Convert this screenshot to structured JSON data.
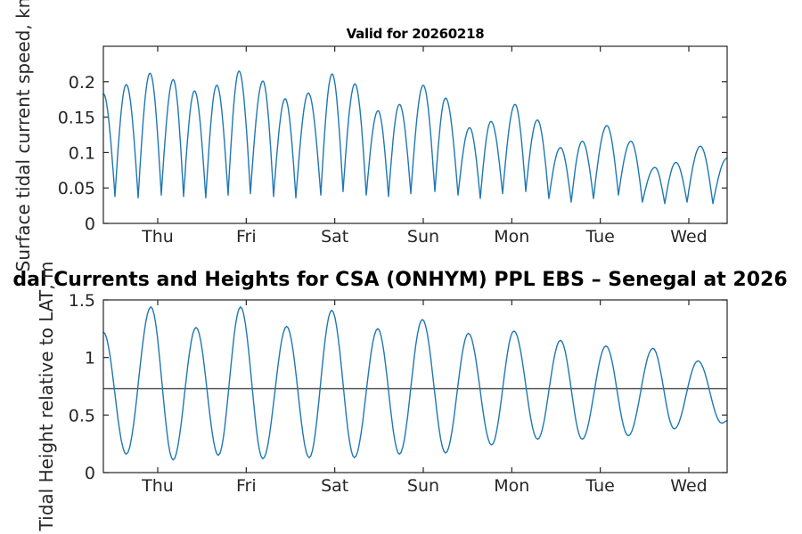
{
  "figure": {
    "title": "dal Currents and Heights for CSA (ONHYM) PPL EBS  – Senegal at 2026",
    "background_color": "#ffffff",
    "line_color": "#1f77b4",
    "axis_color": "#262626",
    "reference_line_color": "#595959",
    "text_color": "#262626"
  },
  "chart_data": [
    {
      "type": "line",
      "title": "Valid for 20260218",
      "ylabel": "Surface tidal current speed, kn",
      "xlabel": "",
      "legend": "none",
      "grid": false,
      "x_range_days": [
        0,
        7.047
      ],
      "x_tick_positions_days": [
        0.614,
        1.614,
        2.614,
        3.614,
        4.614,
        5.614,
        6.614
      ],
      "x_ticklabels": [
        "Thu",
        "Fri",
        "Sat",
        "Sun",
        "Mon",
        "Tue",
        "Wed"
      ],
      "ylim": [
        0,
        0.25
      ],
      "yticks": [
        0,
        0.05,
        0.1,
        0.15,
        0.2
      ],
      "ytick_labels": [
        "0",
        "0.05",
        "0.1",
        "0.15",
        "0.2"
      ],
      "interpolation": "cusp",
      "series": [
        {
          "name": "surface-tidal-current-speed",
          "extrema_day_value": [
            [
              0.0,
              0.183
            ],
            [
              0.131,
              0.038
            ],
            [
              0.259,
              0.196
            ],
            [
              0.393,
              0.036
            ],
            [
              0.527,
              0.212
            ],
            [
              0.654,
              0.04
            ],
            [
              0.789,
              0.203
            ],
            [
              0.906,
              0.038
            ],
            [
              1.03,
              0.187
            ],
            [
              1.157,
              0.036
            ],
            [
              1.281,
              0.195
            ],
            [
              1.409,
              0.04
            ],
            [
              1.533,
              0.215
            ],
            [
              1.661,
              0.042
            ],
            [
              1.802,
              0.201
            ],
            [
              1.923,
              0.038
            ],
            [
              2.054,
              0.176
            ],
            [
              2.175,
              0.036
            ],
            [
              2.316,
              0.184
            ],
            [
              2.456,
              0.04
            ],
            [
              2.584,
              0.211
            ],
            [
              2.708,
              0.045
            ],
            [
              2.842,
              0.197
            ],
            [
              2.97,
              0.04
            ],
            [
              3.103,
              0.159
            ],
            [
              3.221,
              0.038
            ],
            [
              3.345,
              0.168
            ],
            [
              3.473,
              0.042
            ],
            [
              3.614,
              0.195
            ],
            [
              3.745,
              0.045
            ],
            [
              3.866,
              0.177
            ],
            [
              4.007,
              0.04
            ],
            [
              4.137,
              0.135
            ],
            [
              4.258,
              0.035
            ],
            [
              4.379,
              0.144
            ],
            [
              4.51,
              0.042
            ],
            [
              4.651,
              0.168
            ],
            [
              4.772,
              0.045
            ],
            [
              4.903,
              0.146
            ],
            [
              5.033,
              0.035
            ],
            [
              5.164,
              0.107
            ],
            [
              5.285,
              0.03
            ],
            [
              5.411,
              0.116
            ],
            [
              5.537,
              0.035
            ],
            [
              5.688,
              0.138
            ],
            [
              5.819,
              0.04
            ],
            [
              5.96,
              0.116
            ],
            [
              6.09,
              0.03
            ],
            [
              6.231,
              0.079
            ],
            [
              6.342,
              0.028
            ],
            [
              6.468,
              0.086
            ],
            [
              6.594,
              0.03
            ],
            [
              6.745,
              0.109
            ],
            [
              6.886,
              0.028
            ],
            [
              7.047,
              0.092
            ]
          ]
        }
      ]
    },
    {
      "type": "line",
      "title": "",
      "ylabel": "Tidal Height relative to LAT, m",
      "xlabel": "",
      "legend": "none",
      "grid": false,
      "x_range_days": [
        0,
        7.047
      ],
      "x_tick_positions_days": [
        0.614,
        1.614,
        2.614,
        3.614,
        4.614,
        5.614,
        6.614
      ],
      "x_ticklabels": [
        "Thu",
        "Fri",
        "Sat",
        "Sun",
        "Mon",
        "Tue",
        "Wed"
      ],
      "ylim": [
        0,
        1.5
      ],
      "yticks": [
        0,
        0.5,
        1,
        1.5
      ],
      "ytick_labels": [
        "0",
        "0.5",
        "1",
        "1.5"
      ],
      "interpolation": "cosine",
      "reference_line_y": 0.73,
      "series": [
        {
          "name": "tidal-height",
          "extrema_day_value": [
            [
              0.0,
              1.22
            ],
            [
              0.259,
              0.16
            ],
            [
              0.537,
              1.44
            ],
            [
              0.788,
              0.11
            ],
            [
              1.047,
              1.26
            ],
            [
              1.299,
              0.15
            ],
            [
              1.55,
              1.44
            ],
            [
              1.802,
              0.12
            ],
            [
              2.071,
              1.27
            ],
            [
              2.326,
              0.13
            ],
            [
              2.58,
              1.41
            ],
            [
              2.836,
              0.13
            ],
            [
              3.1,
              1.25
            ],
            [
              3.345,
              0.16
            ],
            [
              3.604,
              1.33
            ],
            [
              3.866,
              0.17
            ],
            [
              4.124,
              1.21
            ],
            [
              4.386,
              0.24
            ],
            [
              4.638,
              1.23
            ],
            [
              4.906,
              0.29
            ],
            [
              5.164,
              1.15
            ],
            [
              5.409,
              0.29
            ],
            [
              5.678,
              1.1
            ],
            [
              5.93,
              0.32
            ],
            [
              6.208,
              1.08
            ],
            [
              6.45,
              0.38
            ],
            [
              6.718,
              0.97
            ],
            [
              6.986,
              0.43
            ],
            [
              7.047,
              0.45
            ]
          ]
        }
      ]
    }
  ]
}
